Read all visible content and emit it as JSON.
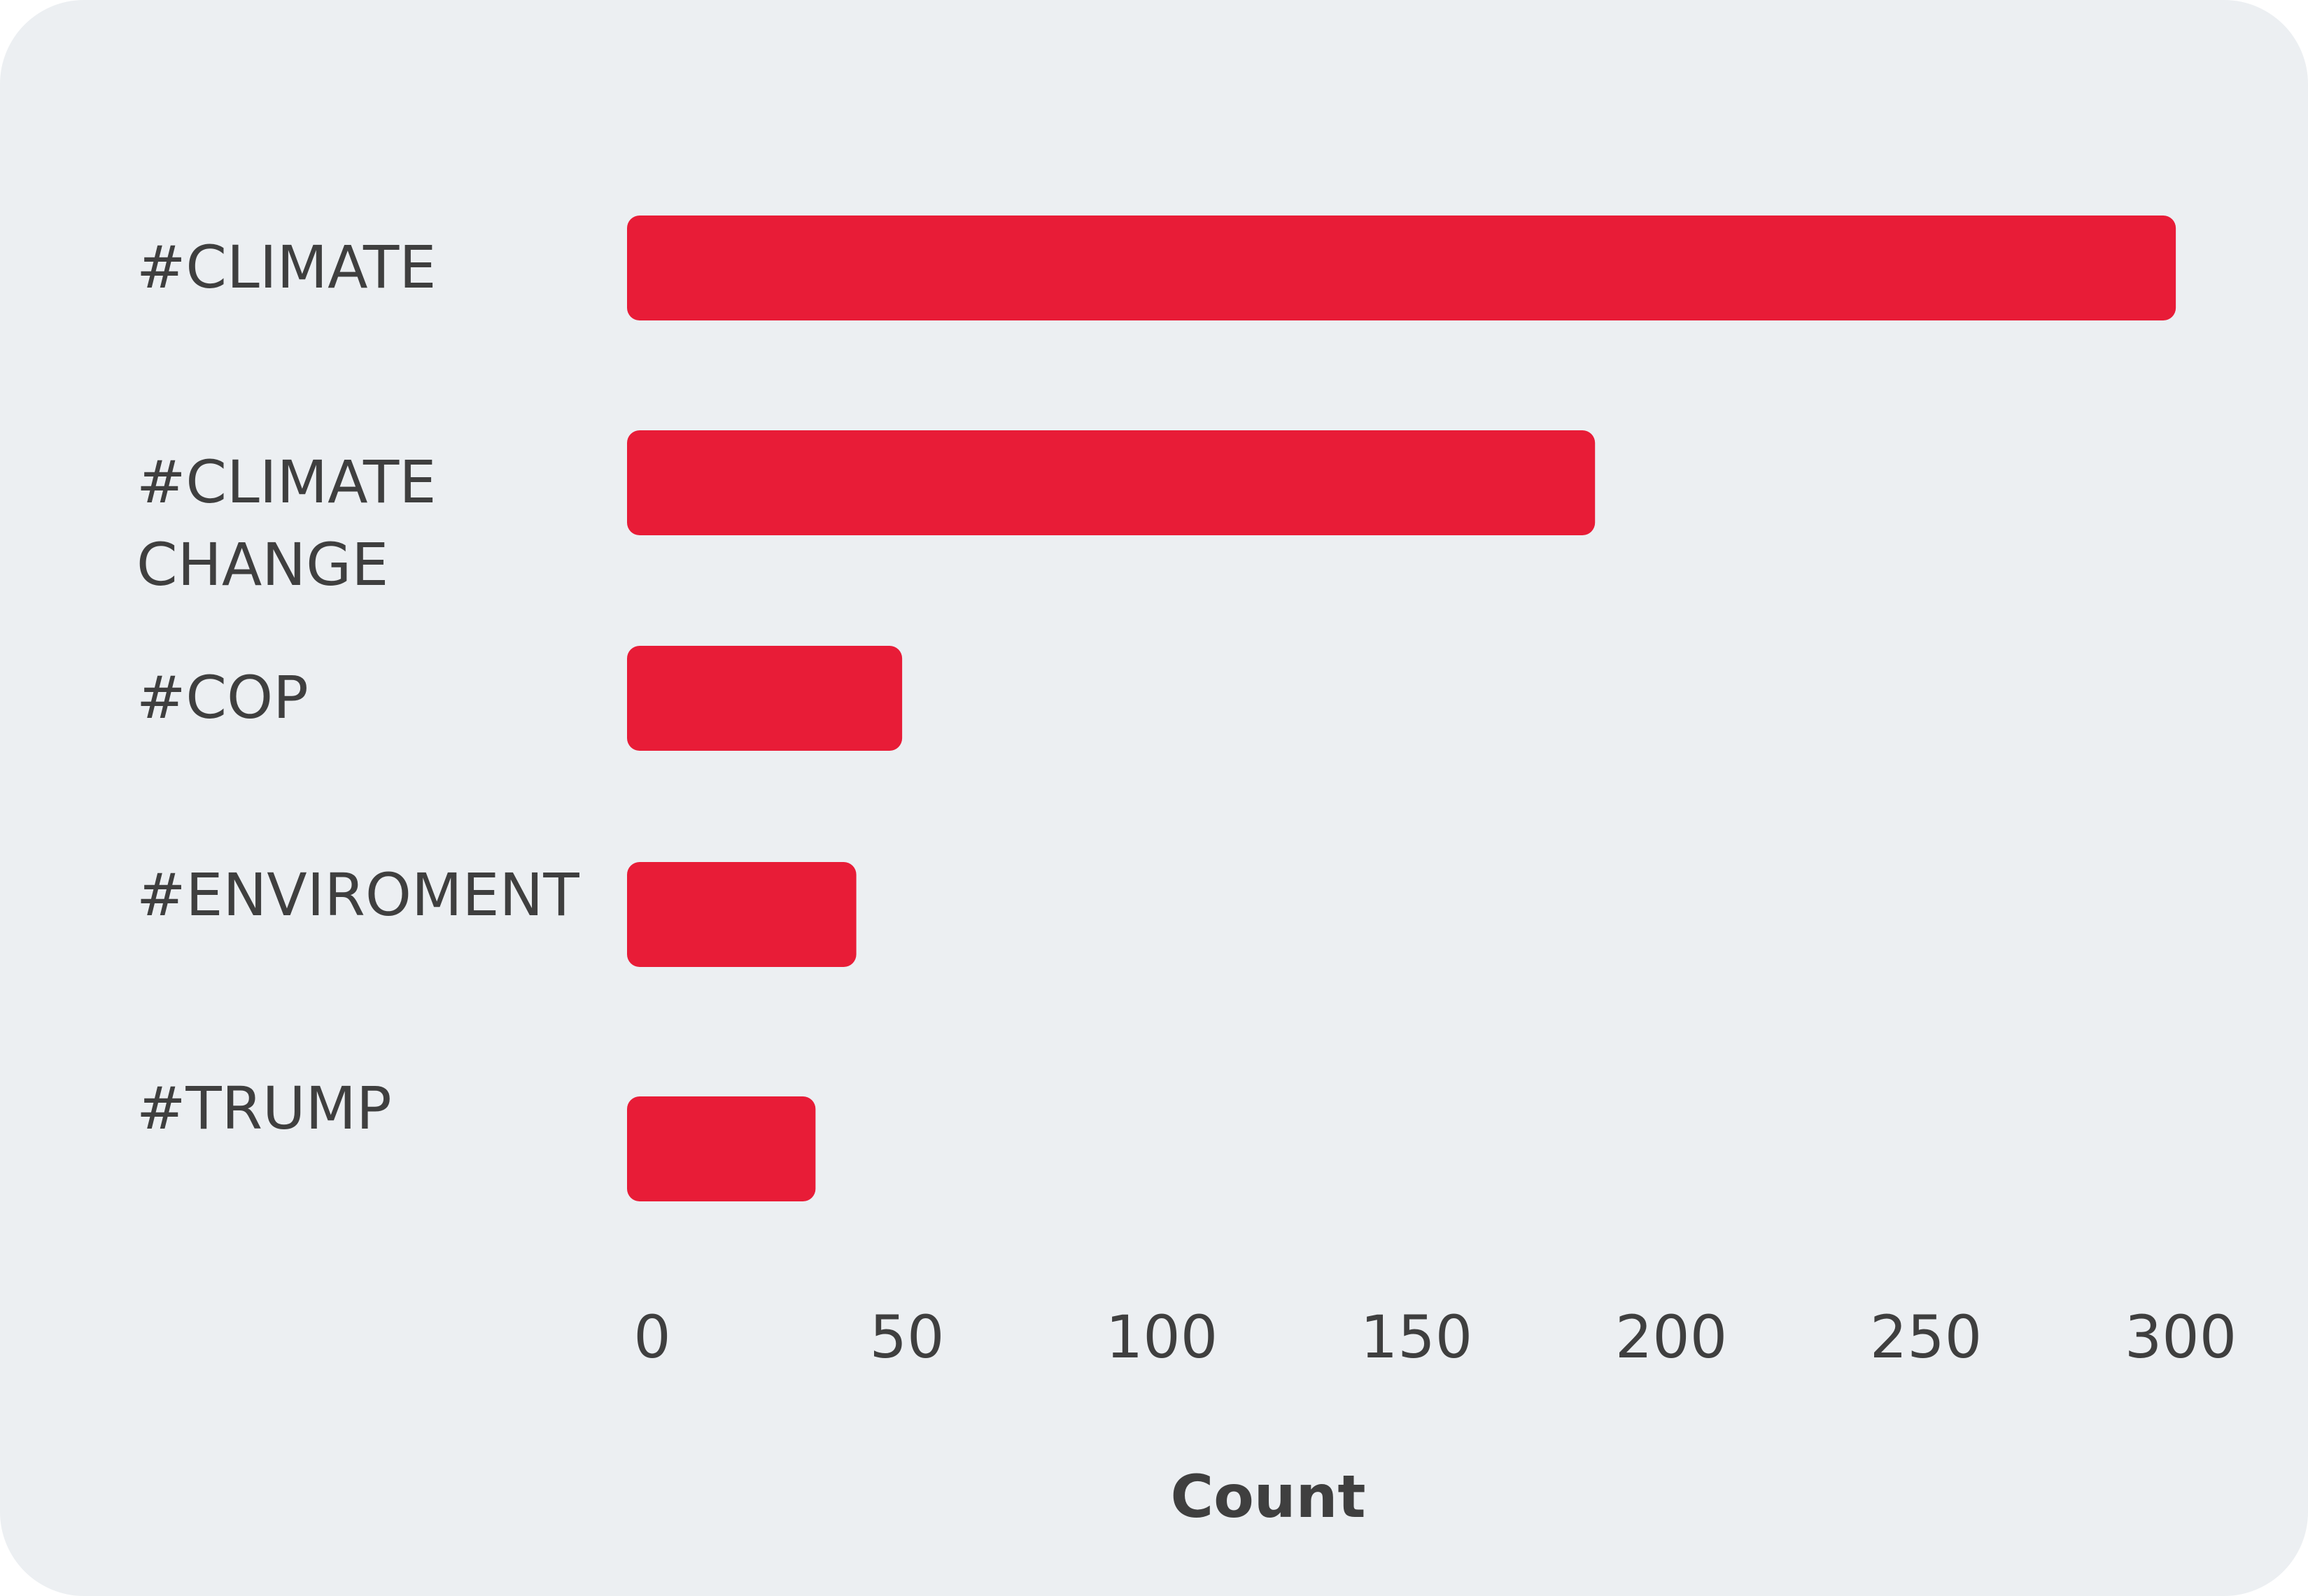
{
  "chart_data": {
    "type": "bar",
    "orientation": "horizontal",
    "categories": [
      [
        "#CLIMATE"
      ],
      [
        "#CLIMATE",
        "CHANGE"
      ],
      [
        "#COP"
      ],
      [
        "#ENVIROMENT"
      ],
      [
        "#TRUMP"
      ]
    ],
    "values": [
      304,
      190,
      54,
      45,
      37
    ],
    "xlabel": "Count",
    "ylabel": "",
    "xlim": [
      0,
      300
    ],
    "xticks": [
      "0",
      "50",
      "100",
      "150",
      "200",
      "250",
      "300"
    ],
    "grid": false,
    "legend": "none",
    "bar_color": "#E81C37",
    "text_color": "#3F3F3F",
    "background": "#ECEFF2"
  }
}
